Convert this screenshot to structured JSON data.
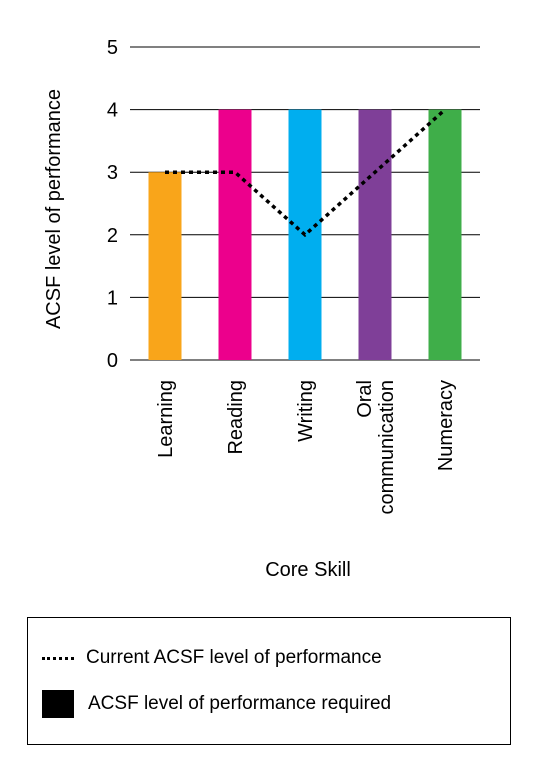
{
  "chart_data": {
    "type": "bar",
    "categories": [
      "Learning",
      "Reading",
      "Writing",
      "Oral communication",
      "Numeracy"
    ],
    "category_label_lines": [
      [
        "Learning"
      ],
      [
        "Reading"
      ],
      [
        "Writing"
      ],
      [
        "Oral",
        "communication"
      ],
      [
        "Numeracy"
      ]
    ],
    "series": [
      {
        "name": "ACSF level of performance required",
        "kind": "bar",
        "values": [
          3,
          4,
          4,
          4,
          4
        ],
        "colors": [
          "#F9A51A",
          "#EC008C",
          "#00AEEF",
          "#7F3F98",
          "#3FAE49"
        ]
      },
      {
        "name": "Current ACSF level of performance",
        "kind": "line",
        "style": "dotted",
        "color": "#000000",
        "values": [
          3,
          3,
          2,
          3,
          4
        ]
      }
    ],
    "xlabel": "Core Skill",
    "ylabel": "ACSF level of performance",
    "ylim": [
      0,
      5
    ],
    "yticks": [
      0,
      1,
      2,
      3,
      4,
      5
    ],
    "grid": true,
    "legend_position": "bottom"
  },
  "legend": {
    "line_label": "Current ACSF level of performance",
    "bar_label": "ACSF level of performance required"
  }
}
